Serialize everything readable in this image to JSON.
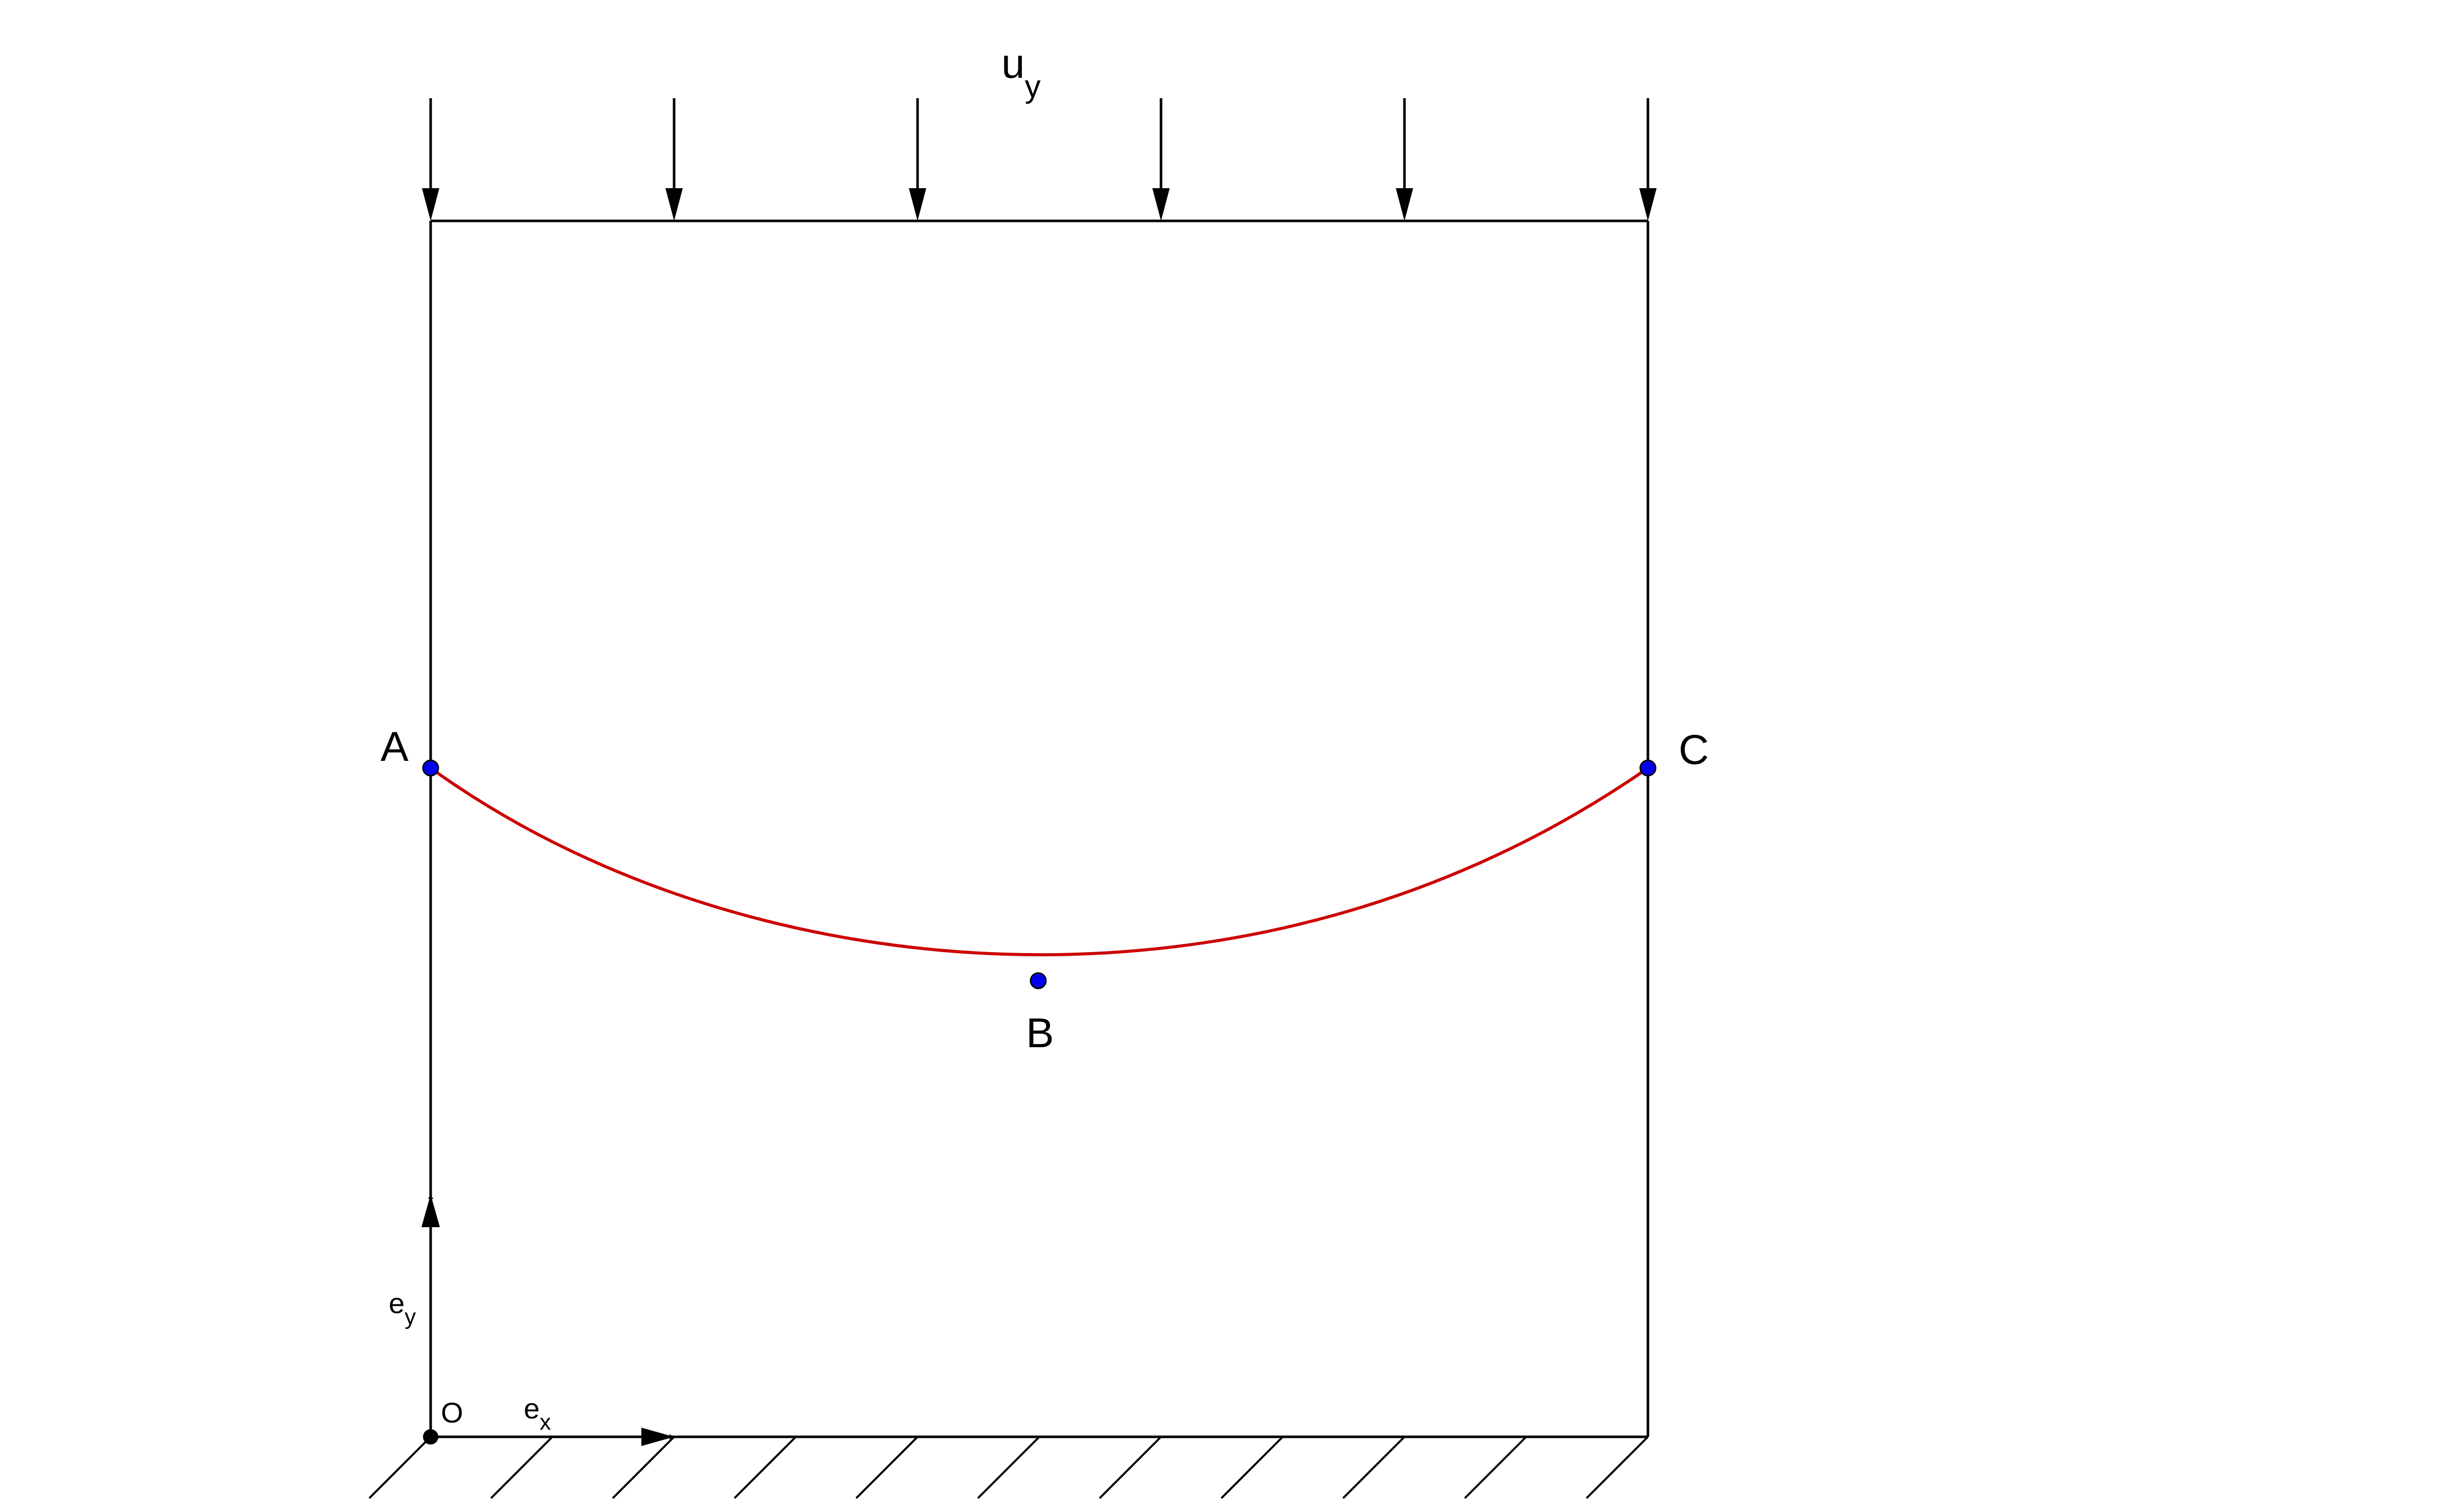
{
  "labels": {
    "load": {
      "base": "u",
      "sub": "y"
    },
    "point_a": "A",
    "point_b": "B",
    "point_c": "C",
    "origin": "O",
    "axis_x": {
      "base": "e",
      "sub": "x"
    },
    "axis_y": {
      "base": "e",
      "sub": "y"
    }
  },
  "colors": {
    "lines": "#000000",
    "curve": "#cc0000",
    "point_fill": "#0000ee",
    "point_stroke": "#000000",
    "origin_point": "#000000"
  },
  "load_arrow_count": 6,
  "ground_hatch_count": 11
}
